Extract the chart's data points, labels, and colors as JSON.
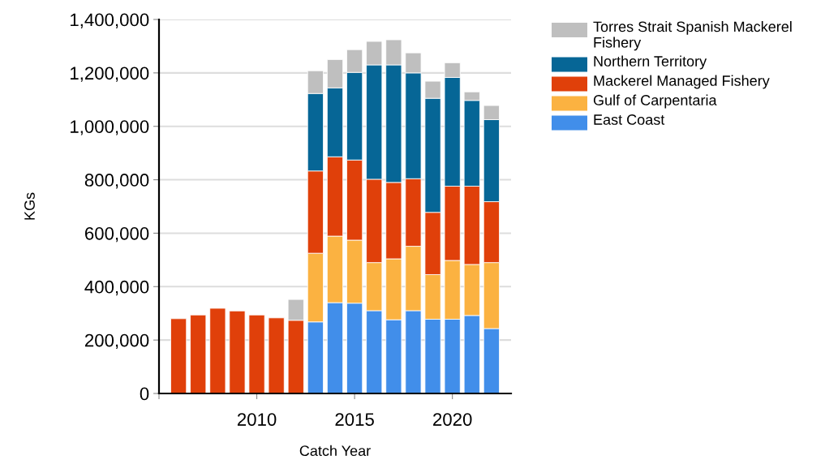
{
  "chart_data": {
    "type": "bar",
    "stacked": true,
    "xlabel": "Catch Year",
    "ylabel": "KGs",
    "x": [
      2006,
      2007,
      2008,
      2009,
      2010,
      2011,
      2012,
      2013,
      2014,
      2015,
      2016,
      2017,
      2018,
      2019,
      2020,
      2021,
      2022
    ],
    "series": [
      {
        "name": "East Coast",
        "color": "#418eea",
        "values": [
          null,
          null,
          null,
          null,
          null,
          null,
          null,
          268000,
          340000,
          338000,
          310000,
          276000,
          310000,
          278000,
          278000,
          292000,
          243000
        ]
      },
      {
        "name": "Gulf of Carpentaria",
        "color": "#fbb241",
        "values": [
          null,
          null,
          null,
          null,
          null,
          null,
          null,
          257000,
          249000,
          236000,
          180000,
          228000,
          241000,
          167000,
          220000,
          191000,
          247000
        ]
      },
      {
        "name": "Mackerel Managed Fishery",
        "color": "#e0400a",
        "values": [
          280000,
          294000,
          319000,
          309000,
          294000,
          283000,
          274000,
          308000,
          297000,
          300000,
          312000,
          286000,
          253000,
          233000,
          278000,
          293000,
          228000
        ]
      },
      {
        "name": "Northern Territory",
        "color": "#066696",
        "values": [
          null,
          null,
          null,
          null,
          null,
          null,
          null,
          290000,
          258000,
          328000,
          428000,
          440000,
          396000,
          427000,
          407000,
          321000,
          307000
        ]
      },
      {
        "name": "Torres Strait Spanish Mackerel Fishery",
        "color": "#bfbfbf",
        "values": [
          null,
          null,
          null,
          null,
          null,
          null,
          78000,
          85000,
          106000,
          85000,
          88000,
          94000,
          75000,
          64000,
          55000,
          32000,
          53000
        ]
      }
    ],
    "xlim": [
      2005,
      2023
    ],
    "xticks": [
      {
        "value": 2005,
        "label": null
      },
      2010,
      2015,
      2020
    ],
    "ylim": [
      0,
      1400000
    ],
    "yticks": [
      {
        "value": 0,
        "label": "0"
      },
      {
        "value": 200000,
        "label": "200,000"
      },
      {
        "value": 400000,
        "label": "400,000"
      },
      {
        "value": 600000,
        "label": "600,000"
      },
      {
        "value": 800000,
        "label": "800,000"
      },
      {
        "value": 1000000,
        "label": "1,000,000"
      },
      {
        "value": 1200000,
        "label": "1,200,000"
      },
      {
        "value": 1400000,
        "label": "1,400,000"
      }
    ],
    "grid": "y",
    "legend": "top right"
  }
}
